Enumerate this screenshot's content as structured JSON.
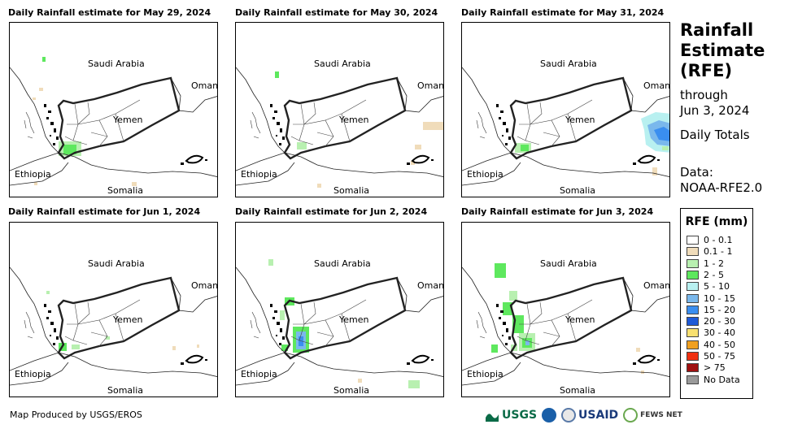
{
  "panels": [
    {
      "title": "Daily Rainfall estimate for May 29, 2024"
    },
    {
      "title": "Daily Rainfall estimate for May 30, 2024"
    },
    {
      "title": "Daily Rainfall estimate for May 31, 2024"
    },
    {
      "title": "Daily Rainfall estimate for Jun 1, 2024"
    },
    {
      "title": "Daily Rainfall estimate for Jun 2, 2024"
    },
    {
      "title": "Daily Rainfall estimate for Jun 3, 2024"
    }
  ],
  "map_labels": {
    "saudi": "Saudi Arabia",
    "oman": "Oman",
    "yemen": "Yemen",
    "ethiopia": "Ethiopia",
    "somalia": "Somalia"
  },
  "right": {
    "title_line1": "Rainfall",
    "title_line2": "Estimate",
    "title_line3": "(RFE)",
    "through": "through",
    "date": "Jun 3, 2024",
    "totals": "Daily Totals",
    "data_label": "Data:",
    "data_source": "NOAA-RFE2.0"
  },
  "legend": {
    "title": "RFE (mm)",
    "items": [
      {
        "label": "0 - 0.1",
        "color": "#ffffff"
      },
      {
        "label": "0.1 - 1",
        "color": "#f0dcba"
      },
      {
        "label": "1 - 2",
        "color": "#b8f0b0"
      },
      {
        "label": "2 - 5",
        "color": "#5ee85e"
      },
      {
        "label": "5 - 10",
        "color": "#b8f0f0"
      },
      {
        "label": "10 - 15",
        "color": "#7ab8ec"
      },
      {
        "label": "15 - 20",
        "color": "#3a8ef0"
      },
      {
        "label": "20 - 30",
        "color": "#1e5ad8"
      },
      {
        "label": "30 - 40",
        "color": "#f8e070"
      },
      {
        "label": "40 - 50",
        "color": "#f0a020"
      },
      {
        "label": "50 - 75",
        "color": "#f03010"
      },
      {
        "label": "> 75",
        "color": "#a01010"
      },
      {
        "label": "No Data",
        "color": "#9a9a9a"
      }
    ]
  },
  "credit": "Map Produced by USGS/EROS",
  "logos": {
    "usgs": "USGS",
    "usaid": "USAID",
    "fews": "FEWS NET"
  }
}
